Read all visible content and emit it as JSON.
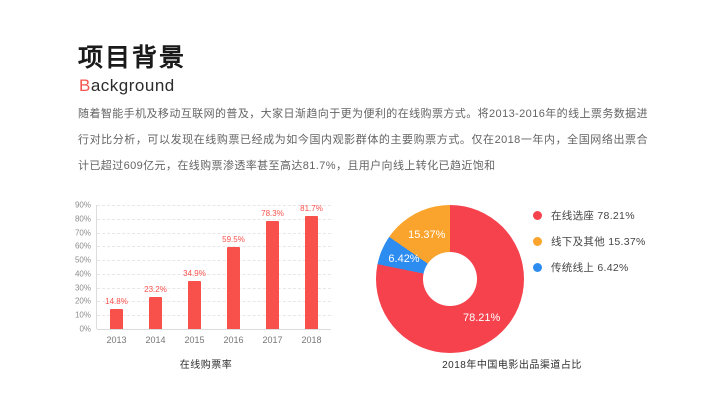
{
  "header": {
    "title": "项目背景",
    "subtitle_accent": "B",
    "subtitle_rest": "ackground"
  },
  "body": {
    "paragraph": "随着智能手机及移动互联网的普及，大家日渐趋向于更为便利的在线购票方式。将2013-2016年的线上票务数据进行对比分析，可以发现在线购票已经成为如今国内观影群体的主要购票方式。仅在2018一年内，全国网络出票合计已超过609亿元，在线购票渗透率甚至高达81.7%，且用户向线上转化已趋近饱和"
  },
  "chart_data": [
    {
      "type": "bar",
      "title": "在线购票率",
      "categories": [
        "2013",
        "2014",
        "2015",
        "2016",
        "2017",
        "2018"
      ],
      "values": [
        14.8,
        23.2,
        34.9,
        59.5,
        78.3,
        81.7
      ],
      "value_labels": [
        "14.8%",
        "23.2%",
        "34.9%",
        "59.5%",
        "78.3%",
        "81.7%"
      ],
      "yticks": [
        "0%",
        "10%",
        "20%",
        "30%",
        "40%",
        "50%",
        "60%",
        "70%",
        "80%",
        "90%"
      ],
      "ylim": [
        0,
        90
      ],
      "bar_color": "#f8504b",
      "grid": "dashed-horizontal",
      "legend_position": "none"
    },
    {
      "type": "pie",
      "title": "2018年中国电影出品渠道占比",
      "slices": [
        {
          "label": "在线选座",
          "value": 78.21,
          "display": "78.21%",
          "color": "#f5424d"
        },
        {
          "label": "线下及其他",
          "value": 15.37,
          "display": "15.37%",
          "color": "#faa42d"
        },
        {
          "label": "传统线上",
          "value": 6.42,
          "display": "6.42%",
          "color": "#2d8cf0"
        }
      ],
      "draw_order": [
        0,
        2,
        1
      ],
      "donut_hole": true,
      "legend_position": "right"
    }
  ]
}
